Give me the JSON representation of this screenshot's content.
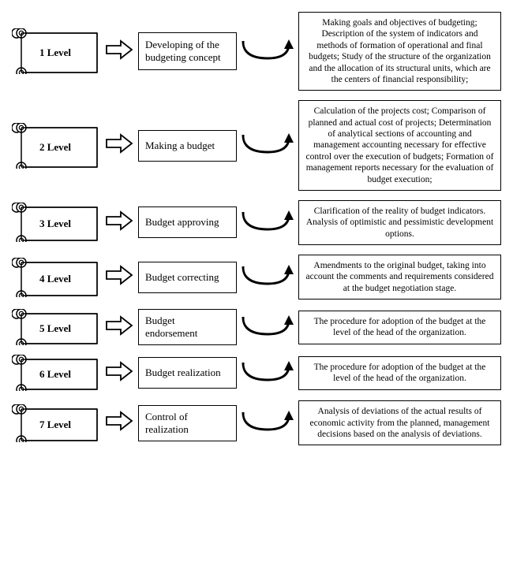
{
  "layout": {
    "scroll_width": 110,
    "stage_width": 125,
    "border_color": "#000000",
    "background": "#ffffff",
    "font_family": "Times New Roman",
    "label_fontsize": 13,
    "desc_fontsize": 11.5
  },
  "rows": [
    {
      "level": "1 Level",
      "stage": "Developing of the budgeting concept",
      "desc": "Making goals and objectives of budgeting; Description of the system of indicators and methods of formation of operational and final budgets; Study of the structure of the organization and the allocation of its structural units, which are the centers of financial responsibility;",
      "scroll_h": 58,
      "stage_h": 48
    },
    {
      "level": "2 Level",
      "stage": "Making a budget",
      "desc": "Calculation of the projects cost; Comparison of planned and actual cost of projects; Determination of analytical sections of accounting and management accounting necessary for effective control over the execution of budgets; Formation of management reports necessary for the evaluation of budget execution;",
      "scroll_h": 58,
      "stage_h": 40
    },
    {
      "level": "3 Level",
      "stage": "Budget approving",
      "desc": "Clarification of the reality of budget indicators. Analysis of optimistic and pessimistic development options.",
      "scroll_h": 50,
      "stage_h": 40
    },
    {
      "level": "4 Level",
      "stage": "Budget correcting",
      "desc": "Amendments to the original budget, taking into account the comments and requirements considered at the budget negotiation stage.",
      "scroll_h": 50,
      "stage_h": 40
    },
    {
      "level": "5 Level",
      "stage": "Budget endorsement",
      "desc": "The procedure for adoption of the budget at the level of the head of the organization.",
      "scroll_h": 46,
      "stage_h": 40
    },
    {
      "level": "6 Level",
      "stage": "Budget realization",
      "desc": "The procedure for adoption of the budget at the level of the head of the organization.",
      "scroll_h": 46,
      "stage_h": 40
    },
    {
      "level": "7 Level",
      "stage": "Control of realization",
      "desc": "Analysis of deviations of the actual results of economic activity from the planned, management decisions based on the analysis of deviations.",
      "scroll_h": 48,
      "stage_h": 44
    }
  ]
}
